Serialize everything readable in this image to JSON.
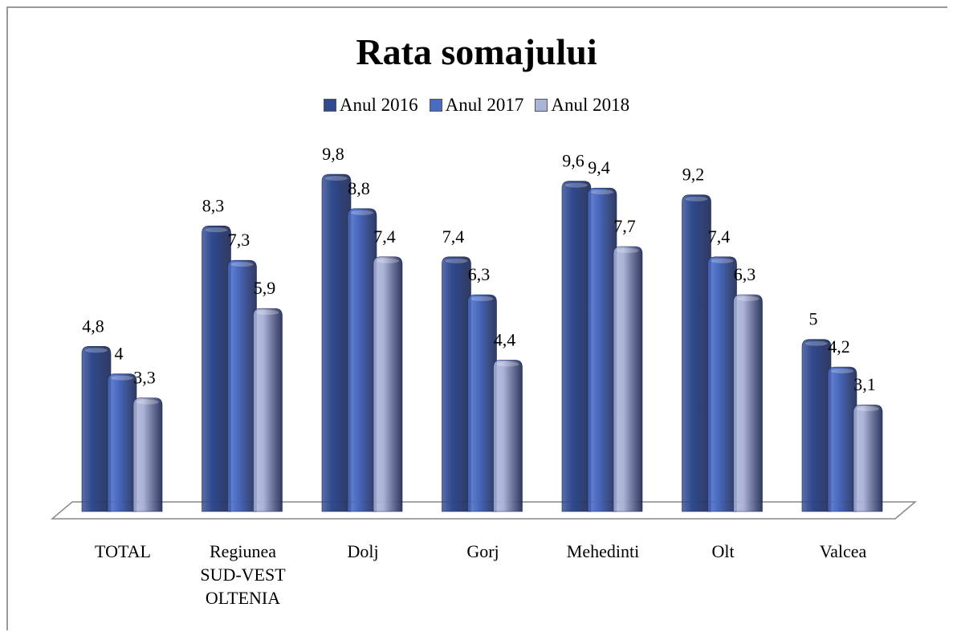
{
  "chart_data": {
    "type": "bar3d",
    "title": "Rata somajului",
    "categories": [
      "TOTAL",
      "Regiunea SUD-VEST OLTENIA",
      "Dolj",
      "Gorj",
      "Mehedinti",
      "Olt",
      "Valcea"
    ],
    "series": [
      {
        "name": "Anul 2016",
        "color": "#2f4a8e",
        "values": [
          4.8,
          8.3,
          9.8,
          7.4,
          9.6,
          9.2,
          5
        ],
        "value_labels": [
          "4,8",
          "8,3",
          "9,8",
          "7,4",
          "9,6",
          "9,2",
          "5"
        ]
      },
      {
        "name": "Anul 2017",
        "color": "#4a6bc2",
        "values": [
          4,
          7.3,
          8.8,
          6.3,
          9.4,
          7.4,
          4.2
        ],
        "value_labels": [
          "4",
          "7,3",
          "8,8",
          "6,3",
          "9,4",
          "7,4",
          "4,2"
        ]
      },
      {
        "name": "Anul 2018",
        "color": "#aab3d8",
        "values": [
          3.3,
          5.9,
          7.4,
          4.4,
          7.7,
          6.3,
          3.1
        ],
        "value_labels": [
          "3,3",
          "5,9",
          "7,4",
          "4,4",
          "7,7",
          "6,3",
          "3,1"
        ]
      }
    ],
    "legend": "top"
  }
}
